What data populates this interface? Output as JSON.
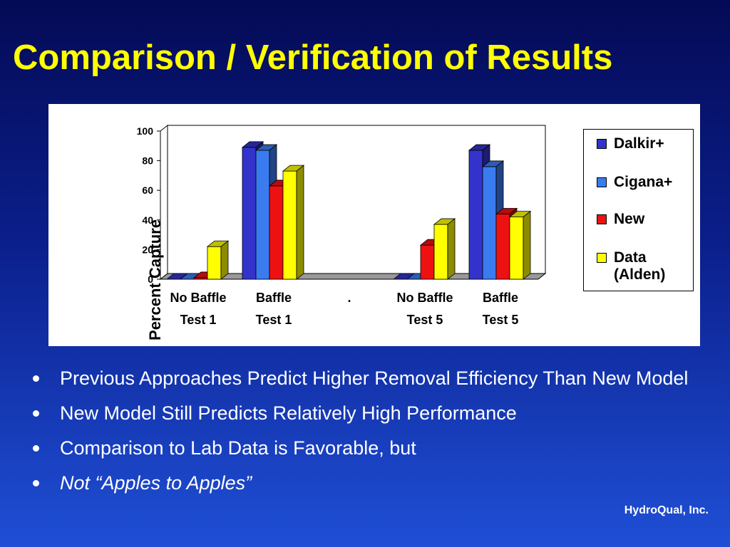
{
  "slide": {
    "title": "Comparison / Verification of Results",
    "footer": "HydroQual, Inc."
  },
  "bullets": [
    {
      "text": "Previous Approaches Predict Higher Removal Efficiency Than New Model",
      "italic": false
    },
    {
      "text": "New Model Still Predicts Relatively High Performance",
      "italic": false
    },
    {
      "text": "Comparison to Lab Data is Favorable, but",
      "italic": false
    },
    {
      "text": "Not “Apples to Apples”",
      "italic": true
    }
  ],
  "chart_data": {
    "type": "bar",
    "style": "3d-clustered",
    "categories": [
      [
        "No Baffle",
        "Test 1"
      ],
      [
        "Baffle",
        "Test 1"
      ],
      [
        "."
      ],
      [
        "No Baffle",
        "Test 5"
      ],
      [
        "Baffle",
        "Test 5"
      ]
    ],
    "series": [
      {
        "name": "Dalkir+",
        "color": "#3333cc",
        "values": [
          0,
          89,
          0,
          0,
          87
        ]
      },
      {
        "name": "Cigana+",
        "color": "#3a7bf0",
        "values": [
          0,
          87,
          0,
          0,
          76
        ]
      },
      {
        "name": "New",
        "color": "#ee1111",
        "values": [
          1,
          63,
          0,
          23,
          44
        ]
      },
      {
        "name": "Data (Alden)",
        "color": "#ffff00",
        "values": [
          22,
          73,
          0,
          37,
          42
        ]
      }
    ],
    "legend_labels": [
      [
        "Dalkir+"
      ],
      [
        "Cigana+"
      ],
      [
        "New"
      ],
      [
        "Data",
        "(Alden)"
      ]
    ],
    "ylabel": "Percent Capture",
    "yticks": [
      "0",
      "20",
      "40",
      "60",
      "80",
      "100"
    ],
    "ylim": [
      0,
      100
    ],
    "legend": "right",
    "grid": false
  }
}
